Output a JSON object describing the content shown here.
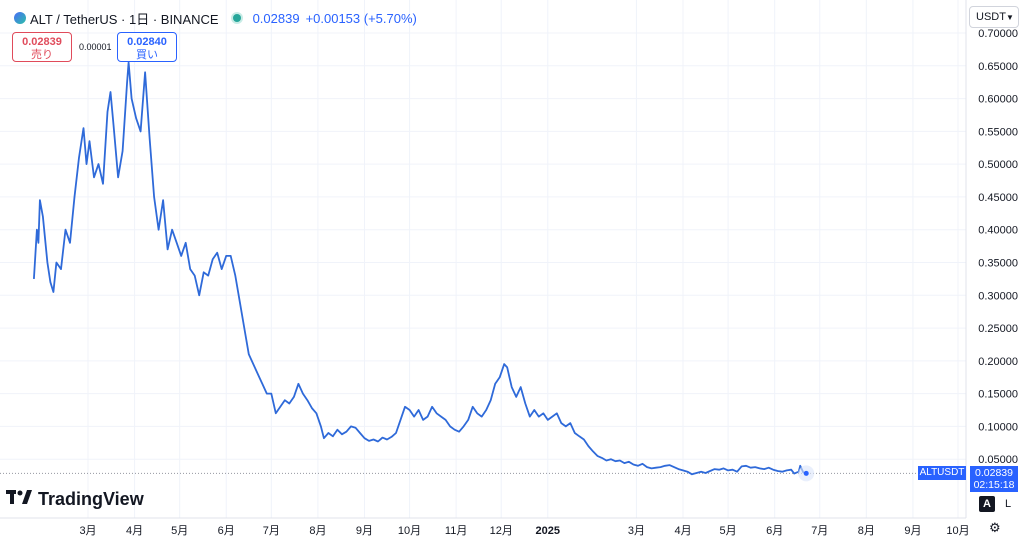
{
  "header": {
    "symbol": "ALT / TetherUS · 1日 · BINANCE",
    "last_value": "0.02839",
    "change": "+0.00153 (+5.70%)"
  },
  "trade": {
    "sell_price": "0.02839",
    "sell_label": "売り",
    "spread": "0.00001",
    "buy_price": "0.02840",
    "buy_label": "買い"
  },
  "currency_select": "USDT",
  "logo_text": "TradingView",
  "price_tag": {
    "symbol": "ALTUSDT",
    "price": "0.02839",
    "countdown": "02:15:18"
  },
  "scale_buttons": {
    "auto": "A",
    "log": "L"
  },
  "colors": {
    "line": "#2f6ad9",
    "accent": "#2962ff",
    "sell": "#e04b5b",
    "live": "#26a69a"
  },
  "chart_data": {
    "type": "line",
    "ylim": [
      0,
      0.7
    ],
    "y_ticks": [
      "0.05000",
      "0.10000",
      "0.15000",
      "0.20000",
      "0.25000",
      "0.30000",
      "0.35000",
      "0.40000",
      "0.45000",
      "0.50000",
      "0.55000",
      "0.60000",
      "0.65000",
      "0.70000"
    ],
    "x_ticks": [
      {
        "label": "3月",
        "d": "2024-03-01"
      },
      {
        "label": "4月",
        "d": "2024-04-01"
      },
      {
        "label": "5月",
        "d": "2024-05-01"
      },
      {
        "label": "6月",
        "d": "2024-06-01"
      },
      {
        "label": "7月",
        "d": "2024-07-01"
      },
      {
        "label": "8月",
        "d": "2024-08-01"
      },
      {
        "label": "9月",
        "d": "2024-09-01"
      },
      {
        "label": "10月",
        "d": "2024-10-01"
      },
      {
        "label": "11月",
        "d": "2024-11-01"
      },
      {
        "label": "12月",
        "d": "2024-12-01"
      },
      {
        "label": "2025",
        "d": "2025-01-01"
      },
      {
        "label": "3月",
        "d": "2025-03-01"
      },
      {
        "label": "4月",
        "d": "2025-04-01"
      },
      {
        "label": "5月",
        "d": "2025-05-01"
      },
      {
        "label": "6月",
        "d": "2025-06-01"
      },
      {
        "label": "7月",
        "d": "2025-07-01"
      },
      {
        "label": "8月",
        "d": "2025-08-01"
      },
      {
        "label": "9月",
        "d": "2025-09-01"
      },
      {
        "label": "10月",
        "d": "2025-10-01"
      }
    ],
    "series": [
      {
        "points": [
          [
            "2024-01-25",
            0.325
          ],
          [
            "2024-01-27",
            0.4
          ],
          [
            "2024-01-28",
            0.38
          ],
          [
            "2024-01-29",
            0.445
          ],
          [
            "2024-01-31",
            0.42
          ],
          [
            "2024-02-03",
            0.35
          ],
          [
            "2024-02-05",
            0.32
          ],
          [
            "2024-02-07",
            0.305
          ],
          [
            "2024-02-09",
            0.35
          ],
          [
            "2024-02-12",
            0.34
          ],
          [
            "2024-02-15",
            0.4
          ],
          [
            "2024-02-18",
            0.38
          ],
          [
            "2024-02-21",
            0.45
          ],
          [
            "2024-02-24",
            0.51
          ],
          [
            "2024-02-27",
            0.555
          ],
          [
            "2024-02-29",
            0.5
          ],
          [
            "2024-03-02",
            0.535
          ],
          [
            "2024-03-05",
            0.48
          ],
          [
            "2024-03-08",
            0.5
          ],
          [
            "2024-03-11",
            0.47
          ],
          [
            "2024-03-14",
            0.58
          ],
          [
            "2024-03-16",
            0.61
          ],
          [
            "2024-03-18",
            0.56
          ],
          [
            "2024-03-21",
            0.48
          ],
          [
            "2024-03-24",
            0.52
          ],
          [
            "2024-03-27",
            0.625
          ],
          [
            "2024-03-28",
            0.655
          ],
          [
            "2024-03-30",
            0.6
          ],
          [
            "2024-04-02",
            0.57
          ],
          [
            "2024-04-05",
            0.55
          ],
          [
            "2024-04-08",
            0.64
          ],
          [
            "2024-04-11",
            0.54
          ],
          [
            "2024-04-14",
            0.45
          ],
          [
            "2024-04-17",
            0.4
          ],
          [
            "2024-04-20",
            0.445
          ],
          [
            "2024-04-23",
            0.37
          ],
          [
            "2024-04-26",
            0.4
          ],
          [
            "2024-04-29",
            0.38
          ],
          [
            "2024-05-02",
            0.36
          ],
          [
            "2024-05-05",
            0.38
          ],
          [
            "2024-05-08",
            0.34
          ],
          [
            "2024-05-11",
            0.33
          ],
          [
            "2024-05-14",
            0.3
          ],
          [
            "2024-05-17",
            0.335
          ],
          [
            "2024-05-20",
            0.33
          ],
          [
            "2024-05-23",
            0.355
          ],
          [
            "2024-05-26",
            0.365
          ],
          [
            "2024-05-29",
            0.34
          ],
          [
            "2024-06-01",
            0.36
          ],
          [
            "2024-06-04",
            0.36
          ],
          [
            "2024-06-07",
            0.33
          ],
          [
            "2024-06-10",
            0.29
          ],
          [
            "2024-06-13",
            0.25
          ],
          [
            "2024-06-16",
            0.21
          ],
          [
            "2024-06-19",
            0.195
          ],
          [
            "2024-06-22",
            0.18
          ],
          [
            "2024-06-25",
            0.165
          ],
          [
            "2024-06-28",
            0.15
          ],
          [
            "2024-07-01",
            0.15
          ],
          [
            "2024-07-04",
            0.12
          ],
          [
            "2024-07-07",
            0.13
          ],
          [
            "2024-07-10",
            0.14
          ],
          [
            "2024-07-13",
            0.135
          ],
          [
            "2024-07-16",
            0.145
          ],
          [
            "2024-07-19",
            0.165
          ],
          [
            "2024-07-22",
            0.15
          ],
          [
            "2024-07-25",
            0.14
          ],
          [
            "2024-07-28",
            0.128
          ],
          [
            "2024-07-31",
            0.12
          ],
          [
            "2024-08-03",
            0.1
          ],
          [
            "2024-08-05",
            0.082
          ],
          [
            "2024-08-08",
            0.09
          ],
          [
            "2024-08-11",
            0.085
          ],
          [
            "2024-08-14",
            0.095
          ],
          [
            "2024-08-17",
            0.088
          ],
          [
            "2024-08-20",
            0.092
          ],
          [
            "2024-08-23",
            0.1
          ],
          [
            "2024-08-26",
            0.098
          ],
          [
            "2024-08-29",
            0.09
          ],
          [
            "2024-09-01",
            0.082
          ],
          [
            "2024-09-04",
            0.078
          ],
          [
            "2024-09-07",
            0.08
          ],
          [
            "2024-09-10",
            0.077
          ],
          [
            "2024-09-13",
            0.083
          ],
          [
            "2024-09-16",
            0.08
          ],
          [
            "2024-09-19",
            0.084
          ],
          [
            "2024-09-22",
            0.09
          ],
          [
            "2024-09-25",
            0.11
          ],
          [
            "2024-09-28",
            0.13
          ],
          [
            "2024-10-01",
            0.125
          ],
          [
            "2024-10-04",
            0.115
          ],
          [
            "2024-10-07",
            0.125
          ],
          [
            "2024-10-10",
            0.11
          ],
          [
            "2024-10-13",
            0.115
          ],
          [
            "2024-10-16",
            0.13
          ],
          [
            "2024-10-19",
            0.12
          ],
          [
            "2024-10-22",
            0.115
          ],
          [
            "2024-10-25",
            0.11
          ],
          [
            "2024-10-28",
            0.1
          ],
          [
            "2024-10-31",
            0.095
          ],
          [
            "2024-11-03",
            0.092
          ],
          [
            "2024-11-06",
            0.1
          ],
          [
            "2024-11-09",
            0.11
          ],
          [
            "2024-11-12",
            0.13
          ],
          [
            "2024-11-15",
            0.12
          ],
          [
            "2024-11-18",
            0.115
          ],
          [
            "2024-11-21",
            0.125
          ],
          [
            "2024-11-24",
            0.14
          ],
          [
            "2024-11-27",
            0.165
          ],
          [
            "2024-11-30",
            0.175
          ],
          [
            "2024-12-03",
            0.195
          ],
          [
            "2024-12-05",
            0.19
          ],
          [
            "2024-12-08",
            0.16
          ],
          [
            "2024-12-11",
            0.145
          ],
          [
            "2024-12-14",
            0.16
          ],
          [
            "2024-12-17",
            0.135
          ],
          [
            "2024-12-20",
            0.115
          ],
          [
            "2024-12-23",
            0.125
          ],
          [
            "2024-12-26",
            0.115
          ],
          [
            "2024-12-29",
            0.12
          ],
          [
            "2025-01-01",
            0.11
          ],
          [
            "2025-01-04",
            0.115
          ],
          [
            "2025-01-07",
            0.12
          ],
          [
            "2025-01-10",
            0.105
          ],
          [
            "2025-01-13",
            0.1
          ],
          [
            "2025-01-16",
            0.105
          ],
          [
            "2025-01-19",
            0.09
          ],
          [
            "2025-01-22",
            0.085
          ],
          [
            "2025-01-25",
            0.08
          ],
          [
            "2025-01-28",
            0.07
          ],
          [
            "2025-01-31",
            0.062
          ],
          [
            "2025-02-03",
            0.055
          ],
          [
            "2025-02-06",
            0.052
          ],
          [
            "2025-02-09",
            0.048
          ],
          [
            "2025-02-12",
            0.05
          ],
          [
            "2025-02-15",
            0.047
          ],
          [
            "2025-02-18",
            0.048
          ],
          [
            "2025-02-21",
            0.044
          ],
          [
            "2025-02-24",
            0.046
          ],
          [
            "2025-02-27",
            0.042
          ],
          [
            "2025-03-02",
            0.04
          ],
          [
            "2025-03-05",
            0.043
          ],
          [
            "2025-03-08",
            0.038
          ],
          [
            "2025-03-11",
            0.036
          ],
          [
            "2025-03-14",
            0.037
          ],
          [
            "2025-03-17",
            0.038
          ],
          [
            "2025-03-20",
            0.04
          ],
          [
            "2025-03-23",
            0.041
          ],
          [
            "2025-03-26",
            0.038
          ],
          [
            "2025-03-29",
            0.035
          ],
          [
            "2025-04-01",
            0.033
          ],
          [
            "2025-04-04",
            0.031
          ],
          [
            "2025-04-07",
            0.027
          ],
          [
            "2025-04-10",
            0.029
          ],
          [
            "2025-04-13",
            0.031
          ],
          [
            "2025-04-16",
            0.029
          ],
          [
            "2025-04-19",
            0.032
          ],
          [
            "2025-04-22",
            0.035
          ],
          [
            "2025-04-25",
            0.034
          ],
          [
            "2025-04-28",
            0.036
          ],
          [
            "2025-05-01",
            0.033
          ],
          [
            "2025-05-04",
            0.034
          ],
          [
            "2025-05-07",
            0.031
          ],
          [
            "2025-05-10",
            0.039
          ],
          [
            "2025-05-13",
            0.04
          ],
          [
            "2025-05-16",
            0.037
          ],
          [
            "2025-05-19",
            0.038
          ],
          [
            "2025-05-22",
            0.036
          ],
          [
            "2025-05-25",
            0.035
          ],
          [
            "2025-05-28",
            0.037
          ],
          [
            "2025-05-31",
            0.034
          ],
          [
            "2025-06-03",
            0.032
          ],
          [
            "2025-06-06",
            0.031
          ],
          [
            "2025-06-09",
            0.033
          ],
          [
            "2025-06-12",
            0.034
          ],
          [
            "2025-06-14",
            0.028
          ],
          [
            "2025-06-17",
            0.031
          ],
          [
            "2025-06-18",
            0.04
          ],
          [
            "2025-06-20",
            0.03
          ],
          [
            "2025-06-22",
            0.02839
          ]
        ]
      }
    ],
    "last_price": 0.02839
  }
}
